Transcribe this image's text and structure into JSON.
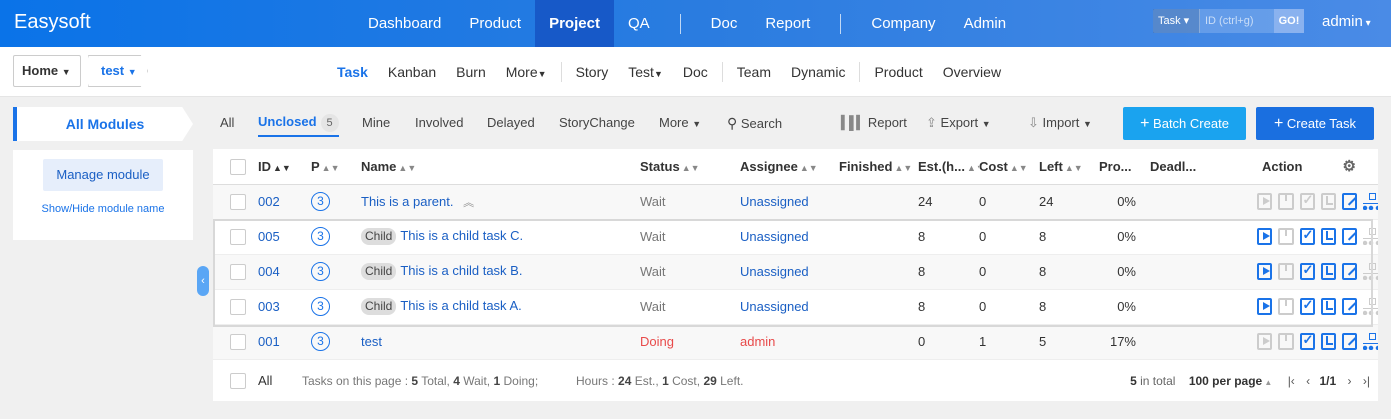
{
  "brand": "Easysoft",
  "nav": {
    "items": [
      "Dashboard",
      "Product",
      "Project",
      "QA",
      "Doc",
      "Report",
      "Company",
      "Admin"
    ],
    "active": "Project"
  },
  "search": {
    "type": "Task",
    "placeholder": "ID (ctrl+g)",
    "go": "GO!"
  },
  "user": "admin",
  "breadcrumb": {
    "home": "Home",
    "project": "test"
  },
  "subnav": {
    "items": [
      "Task",
      "Kanban",
      "Burn",
      "More",
      "Story",
      "Test",
      "Doc",
      "Team",
      "Dynamic",
      "Product",
      "Overview"
    ],
    "active": "Task"
  },
  "modules": {
    "title": "All Modules",
    "manage": "Manage module",
    "toggle": "Show/Hide module name"
  },
  "filters": {
    "all": "All",
    "unclosed": "Unclosed",
    "unclosed_count": "5",
    "mine": "Mine",
    "involved": "Involved",
    "delayed": "Delayed",
    "storychange": "StoryChange",
    "more": "More",
    "search": "Search"
  },
  "actions": {
    "report": "Report",
    "export": "Export",
    "import": "Import",
    "batch_create": "Batch Create",
    "create_task": "Create Task"
  },
  "columns": {
    "id": "ID",
    "p": "P",
    "name": "Name",
    "status": "Status",
    "assignee": "Assignee",
    "finished": "Finished",
    "est": "Est.(h...",
    "cost": "Cost",
    "left": "Left",
    "progress": "Pro...",
    "deadline": "Deadl...",
    "action": "Action"
  },
  "rows": [
    {
      "id": "002",
      "pri": "3",
      "tag": "",
      "name": "This is a parent.",
      "status": "Wait",
      "assignee": "Unassigned",
      "est": "24",
      "cost": "0",
      "left": "24",
      "progress": "0%"
    },
    {
      "id": "005",
      "pri": "3",
      "tag": "Child",
      "name": "This is a child task C.",
      "status": "Wait",
      "assignee": "Unassigned",
      "est": "8",
      "cost": "0",
      "left": "8",
      "progress": "0%"
    },
    {
      "id": "004",
      "pri": "3",
      "tag": "Child",
      "name": "This is a child task B.",
      "status": "Wait",
      "assignee": "Unassigned",
      "est": "8",
      "cost": "0",
      "left": "8",
      "progress": "0%"
    },
    {
      "id": "003",
      "pri": "3",
      "tag": "Child",
      "name": "This is a child task A.",
      "status": "Wait",
      "assignee": "Unassigned",
      "est": "8",
      "cost": "0",
      "left": "8",
      "progress": "0%"
    },
    {
      "id": "001",
      "pri": "3",
      "tag": "",
      "name": "test",
      "status": "Doing",
      "assignee": "admin",
      "est": "0",
      "cost": "1",
      "left": "5",
      "progress": "17%"
    }
  ],
  "footer": {
    "all": "All",
    "summary_prefix": "Tasks on this page : ",
    "total": "5",
    "total_label": " Total, ",
    "wait": "4",
    "wait_label": " Wait, ",
    "doing": "1",
    "doing_label": " Doing;",
    "hours_prefix": "Hours : ",
    "est": "24",
    "est_label": " Est., ",
    "cost": "1",
    "cost_label": " Cost, ",
    "left": "29",
    "left_label": " Left."
  },
  "pager": {
    "in_total_num": "5",
    "in_total_label": " in total",
    "per_page": "100 per page",
    "page": "1/1"
  },
  "colors": {
    "brand_blue": "#0a73e8",
    "link": "#1a5fc4",
    "doing": "#e84a4a",
    "batch": "#1aa3ef",
    "create": "#1a6fe0"
  }
}
